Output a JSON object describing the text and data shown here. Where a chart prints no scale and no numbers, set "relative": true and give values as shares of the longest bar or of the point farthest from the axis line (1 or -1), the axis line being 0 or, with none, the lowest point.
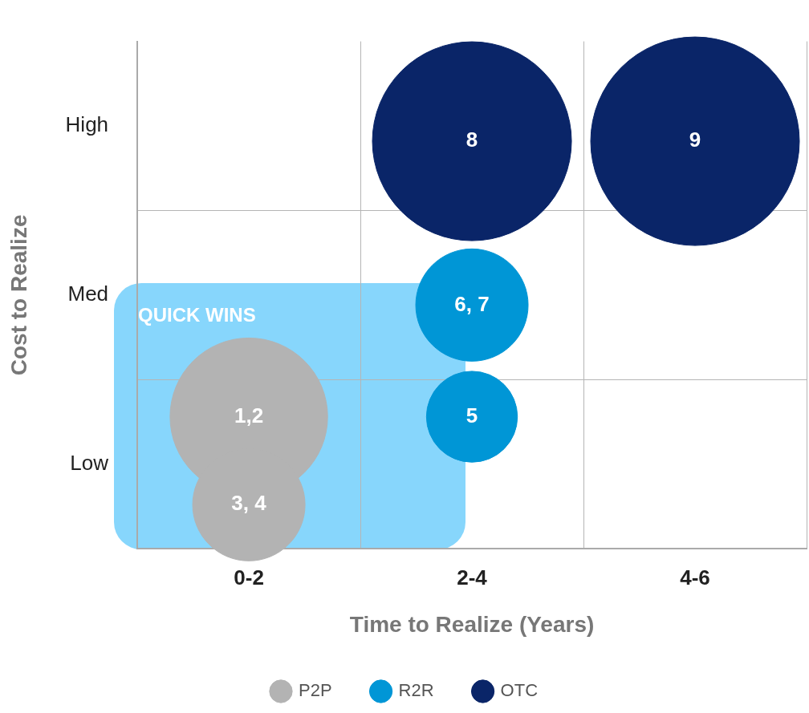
{
  "chart_data": {
    "type": "bubble",
    "relative": true,
    "xlabel": "Time to Realize (Years)",
    "ylabel": "Cost to Realize",
    "categories": [
      "0-2",
      "2-4",
      "4-6"
    ],
    "y_categories": [
      "High",
      "Med",
      "Low"
    ],
    "grid": true,
    "legend": "bottom",
    "annotations": [
      "QUICK WINS",
      {
        "text": "1,2",
        "x": "0-2",
        "y": 0.324
      },
      {
        "text": "3, 4",
        "x": "0-2",
        "y": 0.108
      },
      {
        "text": "5",
        "x": "2-4",
        "y": 0.324
      },
      {
        "text": "6, 7",
        "x": "2-4",
        "y": 0.598
      },
      {
        "text": "8",
        "x": "2-4",
        "y": 1
      },
      {
        "text": "9",
        "x": "4-6",
        "y": 1
      }
    ],
    "series": [
      {
        "name": "P2P",
        "color": "#b3b3b3",
        "x": [
          "0-2",
          "0-2"
        ],
        "values": [
          0.324,
          0.108
        ],
        "sizes": [
          0.57,
          0.29
        ]
      },
      {
        "name": "R2R",
        "color": "#0096d6",
        "x": [
          "2-4",
          "2-4"
        ],
        "values": [
          0.324,
          0.598
        ],
        "sizes": [
          0.19,
          0.29
        ]
      },
      {
        "name": "OTC",
        "color": "#0a2568",
        "x": [
          "2-4",
          "4-6"
        ],
        "values": [
          1,
          1
        ],
        "sizes": [
          0.91,
          1
        ]
      }
    ]
  }
}
